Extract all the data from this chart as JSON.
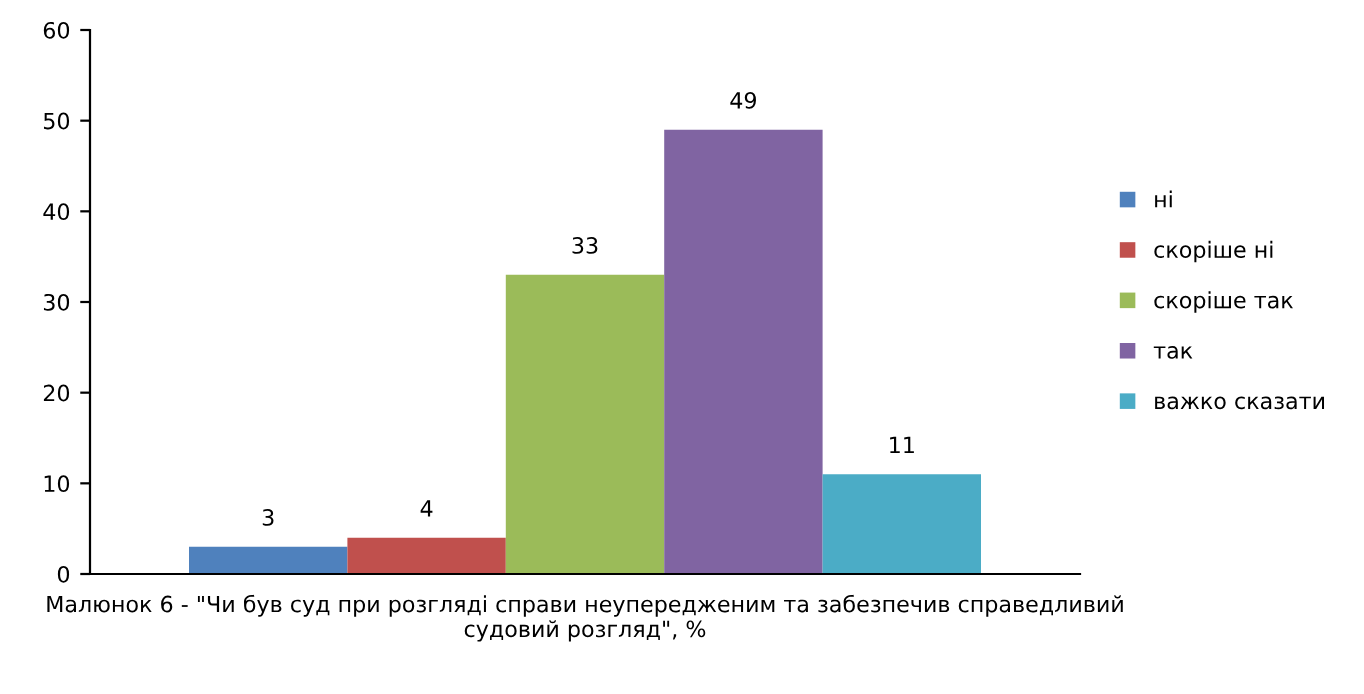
{
  "chart_data": {
    "type": "bar",
    "categories": [
      null
    ],
    "series": [
      {
        "name": "ні",
        "color": "#4f81bd",
        "values": [
          3
        ]
      },
      {
        "name": "скоріше ні",
        "color": "#c0504d",
        "values": [
          4
        ]
      },
      {
        "name": "скоріше так",
        "color": "#9bbb59",
        "values": [
          33
        ]
      },
      {
        "name": "так",
        "color": "#8064a2",
        "values": [
          49
        ]
      },
      {
        "name": "важко сказати",
        "color": "#4bacc6",
        "values": [
          11
        ]
      }
    ],
    "xlabel": "Малюнок 6 - \"Чи був суд при розгляді справи неупередженим та забезпечив справедливий судовий розгляд\", %",
    "ylim": [
      0,
      60
    ],
    "yticks": [
      0,
      10,
      20,
      30,
      40,
      50,
      60
    ],
    "data_labels": true,
    "legend": "right",
    "grid": false
  }
}
